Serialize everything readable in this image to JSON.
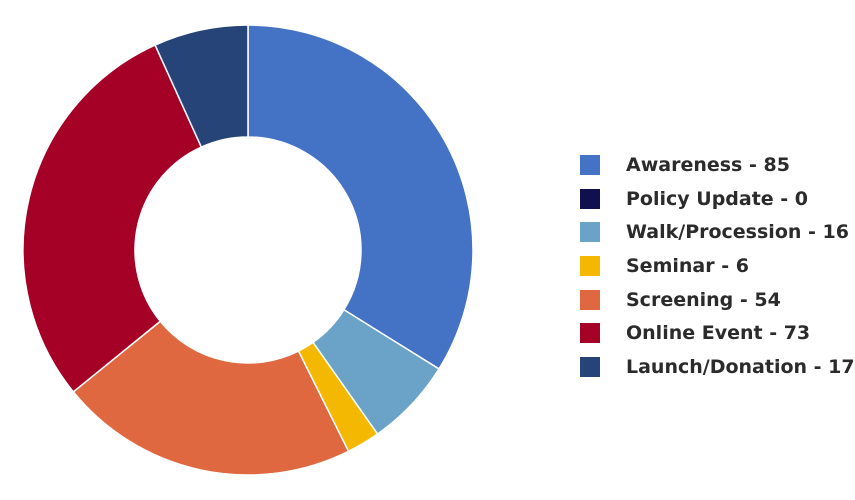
{
  "chart_data": {
    "type": "pie",
    "style": "donut",
    "slices": [
      {
        "label": "Awareness - 85",
        "category": "Awareness",
        "value": 85,
        "color": "#4472c4"
      },
      {
        "label": "Policy Update - 0",
        "category": "Policy Update",
        "value": 0,
        "color": "#10104e"
      },
      {
        "label": "Walk/Procession - 16",
        "category": "Walk/Procession",
        "value": 16,
        "color": "#6aa2c8"
      },
      {
        "label": "Seminar - 6",
        "category": "Seminar",
        "value": 6,
        "color": "#f5b800"
      },
      {
        "label": "Screening - 54",
        "category": "Screening",
        "value": 54,
        "color": "#e06840"
      },
      {
        "label": "Online Event - 73",
        "category": "Online Event",
        "value": 73,
        "color": "#a50026"
      },
      {
        "label": "Launch/Donation - 17",
        "category": "Launch/Donation",
        "value": 17,
        "color": "#264478"
      }
    ],
    "legend_position": "right"
  }
}
